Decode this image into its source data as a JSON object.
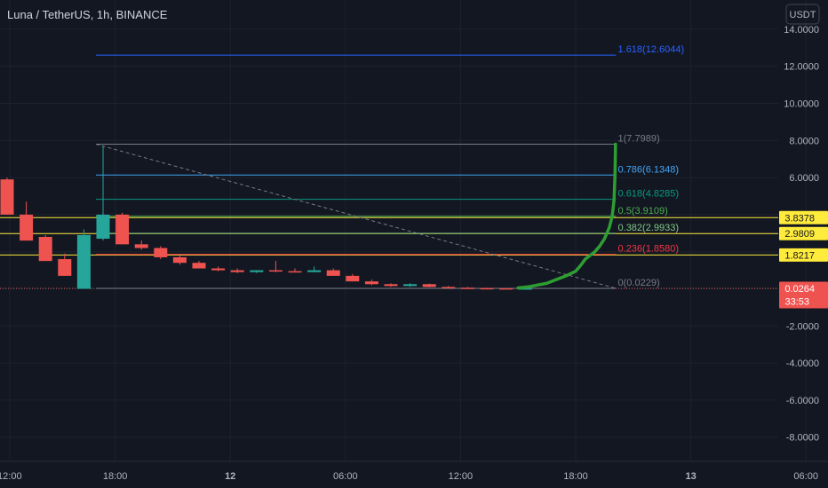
{
  "header": {
    "title": "Luna / TetherUS, 1h, BINANCE"
  },
  "currency_label": "USDT",
  "colors": {
    "background": "#131722",
    "grid": "#1e222d",
    "up": "#26a69a",
    "down": "#ef5350",
    "curve": "#2e9e33",
    "badge_yellow": "#ffeb3b",
    "badge_red": "#ef5350",
    "trendline": "#787b86"
  },
  "chart_data": {
    "type": "candlestick",
    "ylim": [
      -9,
      15
    ],
    "y_ticks": [
      "14.0000",
      "12.0000",
      "10.0000",
      "8.0000",
      "6.0000",
      "4.0000",
      "2.0000",
      "0.0000",
      "-2.0000",
      "-4.0000",
      "-6.0000",
      "-8.0000"
    ],
    "y_tick_values": [
      14,
      12,
      10,
      8,
      6,
      4,
      2,
      0,
      -2,
      -4,
      -6,
      -8
    ],
    "x_ticks": [
      {
        "label": "12:00",
        "x": 2
      },
      {
        "label": "18:00",
        "x": 24
      },
      {
        "label": "12",
        "x": 48
      },
      {
        "label": "06:00",
        "x": 72
      },
      {
        "label": "12:00",
        "x": 96
      },
      {
        "label": "18:00",
        "x": 120
      },
      {
        "label": "13",
        "x": 144
      },
      {
        "label": "06:00",
        "x": 168
      }
    ],
    "candles": [
      {
        "x": 0,
        "o": 5.9,
        "h": 6.0,
        "l": 4.0,
        "c": 4.0
      },
      {
        "x": 4,
        "o": 4.0,
        "h": 4.7,
        "l": 2.6,
        "c": 2.6
      },
      {
        "x": 8,
        "o": 2.8,
        "h": 2.9,
        "l": 1.5,
        "c": 1.5
      },
      {
        "x": 12,
        "o": 1.6,
        "h": 1.9,
        "l": 0.7,
        "c": 0.7
      },
      {
        "x": 16,
        "o": 0.0,
        "h": 3.2,
        "l": 0.0,
        "c": 2.9
      },
      {
        "x": 20,
        "o": 2.7,
        "h": 7.7,
        "l": 2.6,
        "c": 4.0
      },
      {
        "x": 24,
        "o": 4.0,
        "h": 4.1,
        "l": 2.4,
        "c": 2.4
      },
      {
        "x": 28,
        "o": 2.4,
        "h": 2.6,
        "l": 2.1,
        "c": 2.2
      },
      {
        "x": 32,
        "o": 2.2,
        "h": 2.3,
        "l": 1.6,
        "c": 1.7
      },
      {
        "x": 36,
        "o": 1.7,
        "h": 1.8,
        "l": 1.3,
        "c": 1.4
      },
      {
        "x": 40,
        "o": 1.4,
        "h": 1.5,
        "l": 1.1,
        "c": 1.1
      },
      {
        "x": 44,
        "o": 1.1,
        "h": 1.2,
        "l": 0.95,
        "c": 1.0
      },
      {
        "x": 48,
        "o": 1.0,
        "h": 1.1,
        "l": 0.85,
        "c": 0.9
      },
      {
        "x": 52,
        "o": 0.9,
        "h": 1.0,
        "l": 0.85,
        "c": 1.0
      },
      {
        "x": 56,
        "o": 1.0,
        "h": 1.5,
        "l": 0.9,
        "c": 0.95
      },
      {
        "x": 60,
        "o": 0.95,
        "h": 1.1,
        "l": 0.9,
        "c": 0.9
      },
      {
        "x": 64,
        "o": 0.9,
        "h": 1.2,
        "l": 0.9,
        "c": 1.0
      },
      {
        "x": 68,
        "o": 1.0,
        "h": 1.1,
        "l": 0.7,
        "c": 0.7
      },
      {
        "x": 72,
        "o": 0.7,
        "h": 0.8,
        "l": 0.4,
        "c": 0.4
      },
      {
        "x": 76,
        "o": 0.4,
        "h": 0.5,
        "l": 0.2,
        "c": 0.25
      },
      {
        "x": 80,
        "o": 0.25,
        "h": 0.3,
        "l": 0.1,
        "c": 0.15
      },
      {
        "x": 84,
        "o": 0.15,
        "h": 0.3,
        "l": 0.1,
        "c": 0.25
      },
      {
        "x": 88,
        "o": 0.25,
        "h": 0.28,
        "l": 0.08,
        "c": 0.1
      },
      {
        "x": 92,
        "o": 0.1,
        "h": 0.15,
        "l": 0.04,
        "c": 0.06
      },
      {
        "x": 96,
        "o": 0.06,
        "h": 0.1,
        "l": 0.03,
        "c": 0.04
      },
      {
        "x": 100,
        "o": 0.04,
        "h": 0.06,
        "l": 0.02,
        "c": 0.03
      },
      {
        "x": 104,
        "o": 0.03,
        "h": 0.04,
        "l": 0.01,
        "c": 0.02
      },
      {
        "x": 108,
        "o": 0.02,
        "h": 0.03,
        "l": 0.01,
        "c": 0.025
      }
    ],
    "curve": [
      {
        "x": 108,
        "y": 0.05
      },
      {
        "x": 110,
        "y": 0.1
      },
      {
        "x": 112,
        "y": 0.2
      },
      {
        "x": 114,
        "y": 0.3
      },
      {
        "x": 116,
        "y": 0.5
      },
      {
        "x": 118,
        "y": 0.7
      },
      {
        "x": 120,
        "y": 0.95
      },
      {
        "x": 121,
        "y": 1.25
      },
      {
        "x": 122,
        "y": 1.6
      },
      {
        "x": 123,
        "y": 1.8
      },
      {
        "x": 124,
        "y": 2.0
      },
      {
        "x": 125,
        "y": 2.3
      },
      {
        "x": 126,
        "y": 2.7
      },
      {
        "x": 127,
        "y": 3.3
      },
      {
        "x": 127.6,
        "y": 3.9
      },
      {
        "x": 128,
        "y": 4.8
      },
      {
        "x": 128.2,
        "y": 6.2
      },
      {
        "x": 128.3,
        "y": 7.8
      }
    ],
    "trendline": {
      "x1": 20,
      "y1": 7.7989,
      "x2": 128.4,
      "y2": 0.0229
    },
    "fib": {
      "x_start": 20,
      "x_end": 128.4,
      "label_x": 128.8,
      "levels": [
        {
          "label": "1.618(12.6044)",
          "value": 12.6044,
          "color": "#2962ff"
        },
        {
          "label": "1(7.7989)",
          "value": 7.7989,
          "color": "#787b86"
        },
        {
          "label": "0.786(6.1348)",
          "value": 6.1348,
          "color": "#42a5f5"
        },
        {
          "label": "0.618(4.8285)",
          "value": 4.8285,
          "color": "#089981"
        },
        {
          "label": "0.5(3.9109)",
          "value": 3.9109,
          "color": "#4caf50"
        },
        {
          "label": "0.382(2.9933)",
          "value": 2.9933,
          "color": "#81c784"
        },
        {
          "label": "0.236(1.8580)",
          "value": 1.858,
          "color": "#f23645"
        },
        {
          "label": "0(0.0229)",
          "value": 0.0229,
          "color": "#787b86"
        }
      ]
    },
    "horizontal_lines": [
      {
        "value": 3.8378,
        "color": "#ffeb3b"
      },
      {
        "value": 2.9809,
        "color": "#ffeb3b"
      },
      {
        "value": 1.8217,
        "color": "#ffeb3b"
      },
      {
        "value": 0.0264,
        "color": "#ef5350"
      }
    ],
    "price_badges": [
      {
        "value": 3.8378,
        "label": "3.8378",
        "bg": "#ffeb3b",
        "fg": "#131722"
      },
      {
        "value": 2.9809,
        "label": "2.9809",
        "bg": "#ffeb3b",
        "fg": "#131722"
      },
      {
        "value": 1.8217,
        "label": "1.8217",
        "bg": "#ffeb3b",
        "fg": "#131722"
      },
      {
        "value": 0.0264,
        "label": "0.0264",
        "bg": "#ef5350",
        "fg": "#ffffff",
        "sub": "33:53"
      }
    ]
  }
}
